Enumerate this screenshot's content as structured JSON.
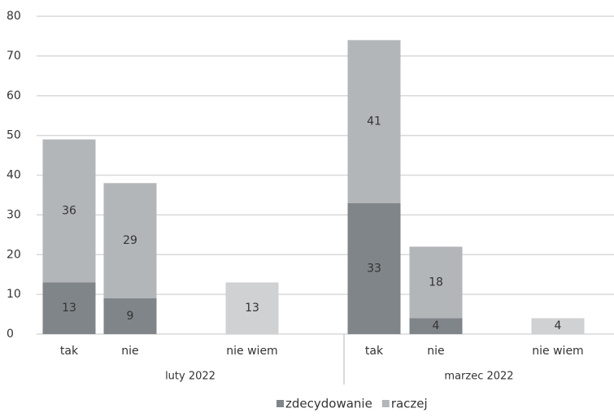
{
  "chart_data": {
    "type": "stacked_bar",
    "categories": [
      "tak",
      "nie",
      "nie wiem",
      "tak",
      "nie",
      "nie wiem"
    ],
    "groups": [
      {
        "label": "luty 2022",
        "count": 3
      },
      {
        "label": "marzec 2022",
        "count": 3
      }
    ],
    "series": [
      {
        "name": "zdecydowanie",
        "color": "#80858a",
        "values": [
          13,
          9,
          null,
          33,
          4,
          null
        ]
      },
      {
        "name": "raczej",
        "color": "#b3b6b8",
        "point_colors": [
          "#b3b6b8",
          "#b3b6b8",
          "#d0d1d2",
          "#b3b6b8",
          "#b3b6b8",
          "#d0d1d2"
        ],
        "values": [
          36,
          29,
          13,
          41,
          18,
          4
        ]
      }
    ],
    "ylim": [
      0,
      80
    ],
    "yticks": [
      0,
      10,
      20,
      30,
      40,
      50,
      60,
      70,
      80
    ],
    "grid": true,
    "legend": "bottom"
  }
}
